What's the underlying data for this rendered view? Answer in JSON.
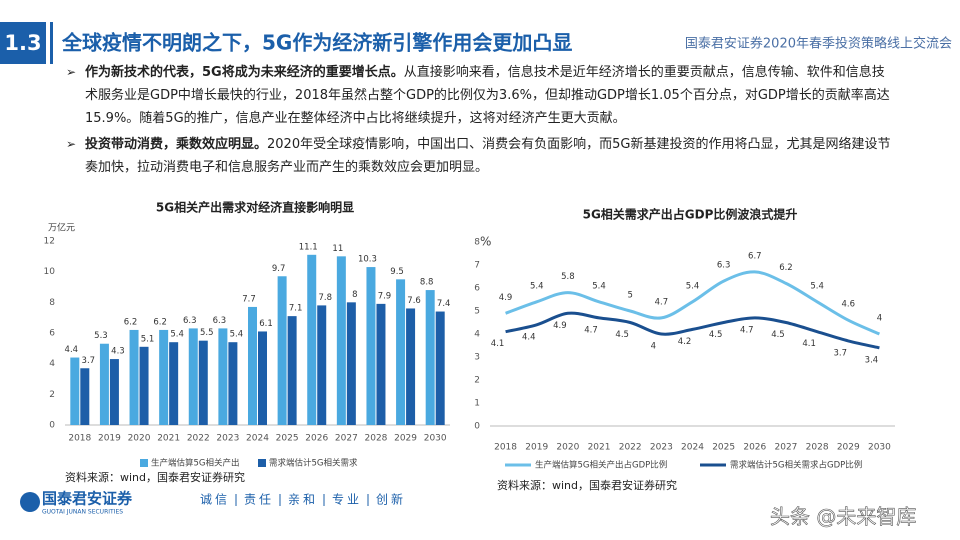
{
  "header": {
    "section": "1.3",
    "title": "全球疫情不明朗之下，5G作为经济新引擎作用会更加凸显",
    "event": "国泰君安证券2020年春季投资策略线上交流会"
  },
  "bullets": [
    {
      "lead": "作为新技术的代表，5G将成为未来经济的重要增长点。",
      "text": "从直接影响来看，信息技术是近年经济增长的重要贡献点，信息传输、软件和信息技术服务业是GDP中增长最快的行业，2018年虽然占整个GDP的比例仅为3.6%，但却推动GDP增长1.05个百分点，对GDP增长的贡献率高达15.9%。随着5G的推广，信息产业在整体经济中占比将继续提升，这将对经济产生更大贡献。"
    },
    {
      "lead": "投资带动消费，乘数效应明显。",
      "text": "2020年受全球疫情影响，中国出口、消费会有负面影响，而5G新基建投资的作用将凸显，尤其是网络建设节奏加快，拉动消费电子和信息服务产业而产生的乘数效应会更加明显。"
    }
  ],
  "chart_data": [
    {
      "type": "bar",
      "title": "5G相关产出需求对经济直接影响明显",
      "y_label": "万亿元",
      "source": "资料来源：wind，国泰君安证券研究",
      "categories": [
        "2018",
        "2019",
        "2020",
        "2021",
        "2022",
        "2023",
        "2024",
        "2025",
        "2026",
        "2027",
        "2028",
        "2029",
        "2030"
      ],
      "series": [
        {
          "name": "生产端估算5G相关产出",
          "color": "#4aa9e0",
          "values": [
            4.4,
            5.3,
            6.2,
            6.2,
            6.3,
            6.3,
            7.7,
            9.7,
            11.1,
            11,
            10.3,
            9.5,
            8.8
          ]
        },
        {
          "name": "需求端估计5G相关需求",
          "color": "#1d5ea8",
          "values": [
            3.7,
            4.3,
            5.1,
            5.4,
            5.5,
            5.4,
            6.1,
            7.1,
            7.8,
            8,
            7.9,
            7.6,
            7.4
          ]
        }
      ],
      "ylim": [
        0,
        12
      ],
      "yticks": [
        0,
        2,
        4,
        6,
        8,
        10,
        12
      ],
      "grid": false
    },
    {
      "type": "line",
      "title": "5G相关需求产出占GDP比例波浪式提升",
      "y_label": "%",
      "source": "资料来源：wind，国泰君安证券研究",
      "categories": [
        "2018",
        "2019",
        "2020",
        "2021",
        "2022",
        "2023",
        "2024",
        "2025",
        "2026",
        "2027",
        "2028",
        "2029",
        "2030"
      ],
      "series": [
        {
          "name": "生产端估算5G相关产出占GDP比例",
          "color": "#6bbfe8",
          "values": [
            4.9,
            5.4,
            5.8,
            5.4,
            5,
            4.7,
            5.4,
            6.3,
            6.7,
            6.2,
            5.4,
            4.6,
            4
          ]
        },
        {
          "name": "需求端估计5G相关需求占GDP比例",
          "color": "#1a4f8f",
          "values": [
            4.1,
            4.4,
            4.9,
            4.7,
            4.5,
            4,
            4.2,
            4.5,
            4.7,
            4.5,
            4.1,
            3.7,
            3.4
          ]
        }
      ],
      "ylim": [
        0,
        8
      ],
      "yticks": [
        0,
        1,
        2,
        3,
        4,
        5,
        6,
        7,
        8
      ],
      "grid": false
    }
  ],
  "footer": {
    "logo": "国泰君安证券",
    "logo_en": "GUOTAI JUNAN SECURITIES",
    "slogan": [
      "诚信",
      "责任",
      "亲和",
      "专业",
      "创新"
    ],
    "watermark": "头条 @未来智库"
  }
}
